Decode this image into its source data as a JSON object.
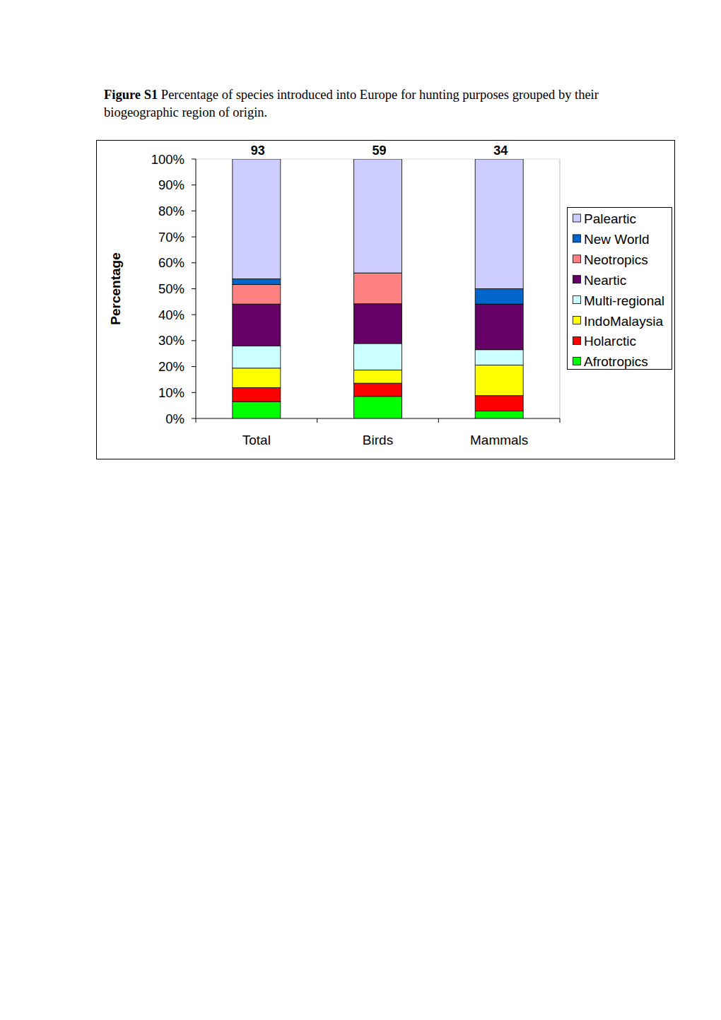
{
  "chart_data": {
    "type": "bar",
    "stacked": true,
    "caption_label": "Figure S1",
    "title": "Percentage of species introduced into Europe for hunting purposes grouped by their biogeographic region of origin.",
    "y_label": "Percentage",
    "categories": [
      "Total",
      "Birds",
      "Mammals"
    ],
    "totals": [
      93,
      59,
      34
    ],
    "ylim": [
      0,
      100
    ],
    "yticks": [
      {
        "value": 0,
        "label": "0%"
      },
      {
        "value": 10,
        "label": "10%"
      },
      {
        "value": 20,
        "label": "20%"
      },
      {
        "value": 30,
        "label": "30%"
      },
      {
        "value": 40,
        "label": "40%"
      },
      {
        "value": 50,
        "label": "50%"
      },
      {
        "value": 60,
        "label": "60%"
      },
      {
        "value": 70,
        "label": "70%"
      },
      {
        "value": 80,
        "label": "80%"
      },
      {
        "value": 90,
        "label": "90%"
      },
      {
        "value": 100,
        "label": "100%"
      }
    ],
    "legend": "right",
    "series": [
      {
        "name": "Afrotropics",
        "color": "#00ff00",
        "values": [
          6.5,
          8.5,
          2.9
        ]
      },
      {
        "name": "Holarctic",
        "color": "#ff0000",
        "values": [
          5.4,
          5.1,
          5.9
        ]
      },
      {
        "name": "IndoMalaysia",
        "color": "#ffff00",
        "values": [
          7.5,
          5.1,
          11.8
        ]
      },
      {
        "name": "Multi-regional",
        "color": "#ccffff",
        "values": [
          8.6,
          10.2,
          5.9
        ]
      },
      {
        "name": "Neartic",
        "color": "#660066",
        "values": [
          16.1,
          15.3,
          17.6
        ]
      },
      {
        "name": "Neotropics",
        "color": "#ff8080",
        "values": [
          7.5,
          11.9,
          0
        ]
      },
      {
        "name": "New World",
        "color": "#0066cc",
        "values": [
          2.2,
          0,
          5.9
        ]
      },
      {
        "name": "Paleartic",
        "color": "#ccccff",
        "values": [
          46.2,
          43.9,
          50.0
        ]
      }
    ]
  }
}
